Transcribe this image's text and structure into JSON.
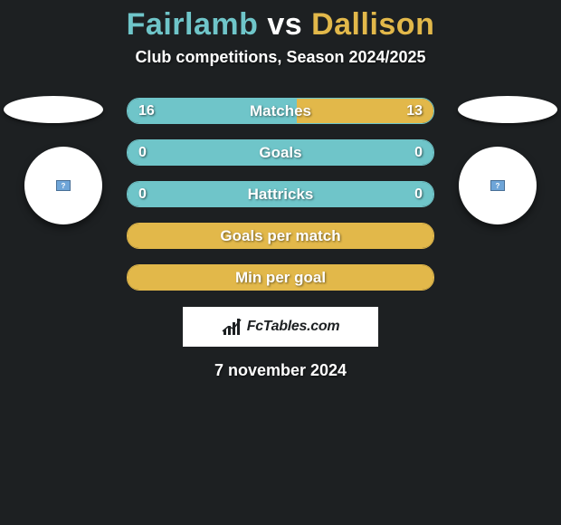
{
  "header": {
    "title_parts": [
      "Fairlamb",
      " vs ",
      "Dallison"
    ],
    "title_colors": [
      "#6fc5c9",
      "#ffffff",
      "#e2b84a"
    ],
    "subtitle": "Club competitions, Season 2024/2025"
  },
  "players": {
    "left": {
      "color": "#6fc5c9",
      "avatar_placeholder": "?"
    },
    "right": {
      "color": "#e2b84a",
      "avatar_placeholder": "?"
    }
  },
  "rows": [
    {
      "label": "Matches",
      "left_value": "16",
      "right_value": "13",
      "left_pct": 55.2,
      "right_pct": 44.8,
      "fill_left_color": "#6fc5c9",
      "fill_right_color": "#e2b84a",
      "border_color": "#6fc5c9",
      "show_values": true
    },
    {
      "label": "Goals",
      "left_value": "0",
      "right_value": "0",
      "left_pct": 100,
      "right_pct": 0,
      "fill_left_color": "#6fc5c9",
      "fill_right_color": "#e2b84a",
      "border_color": "#6fc5c9",
      "show_values": true
    },
    {
      "label": "Hattricks",
      "left_value": "0",
      "right_value": "0",
      "left_pct": 100,
      "right_pct": 0,
      "fill_left_color": "#6fc5c9",
      "fill_right_color": "#e2b84a",
      "border_color": "#6fc5c9",
      "show_values": true
    },
    {
      "label": "Goals per match",
      "left_value": "",
      "right_value": "",
      "left_pct": 0,
      "right_pct": 100,
      "fill_left_color": "#6fc5c9",
      "fill_right_color": "#e2b84a",
      "border_color": "#e2b84a",
      "show_values": false
    },
    {
      "label": "Min per goal",
      "left_value": "",
      "right_value": "",
      "left_pct": 0,
      "right_pct": 100,
      "fill_left_color": "#6fc5c9",
      "fill_right_color": "#e2b84a",
      "border_color": "#e2b84a",
      "show_values": false
    }
  ],
  "footer": {
    "logo_text": "FcTables.com",
    "date": "7 november 2024"
  },
  "style": {
    "background": "#1d2022",
    "ellipse_color": "#ffffff",
    "avatar_bg": "#ffffff"
  }
}
